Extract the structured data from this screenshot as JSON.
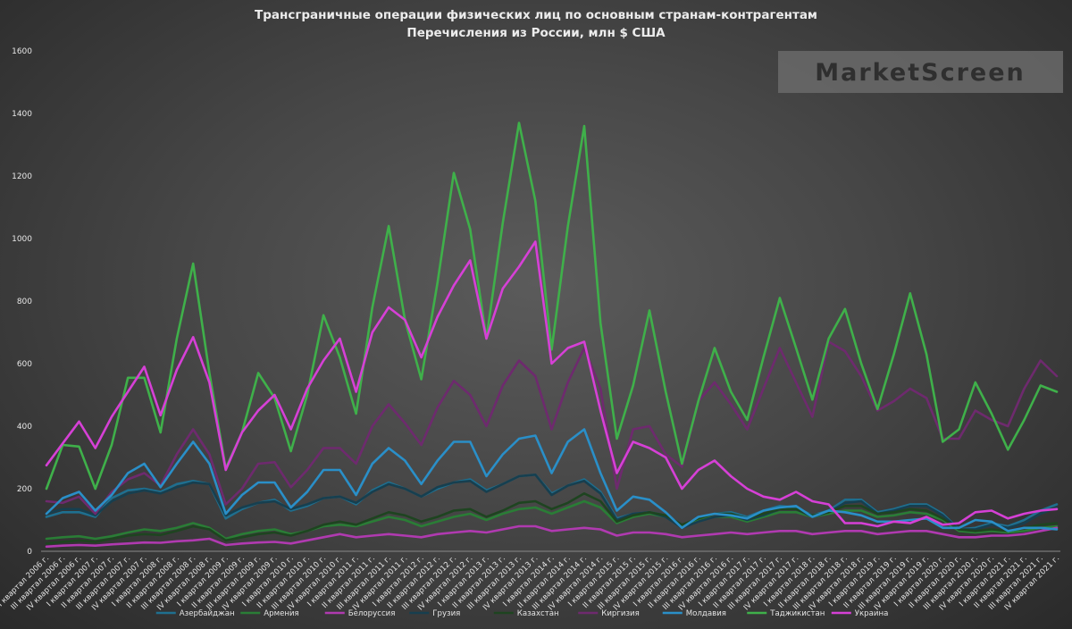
{
  "chart_data": {
    "type": "line",
    "title": "Трансграничные операции физических лиц по основным странам-контрагентам",
    "subtitle": "Перечисления из России, млн $ США",
    "ylim": [
      0,
      1600
    ],
    "yticks": [
      0,
      200,
      400,
      600,
      800,
      1000,
      1200,
      1400,
      1600
    ],
    "grid": false,
    "legend_position": "bottom",
    "watermark": "MarketScreen",
    "categories": [
      "II квартал 2006 г.",
      "III квартал 2006 г.",
      "IV квартал 2006 г.",
      "I квартал 2007 г.",
      "II квартал 2007 г.",
      "III квартал 2007 г.",
      "IV квартал 2007 г.",
      "I квартал 2008 г.",
      "II квартал 2008 г.",
      "III квартал 2008 г.",
      "IV квартал 2008 г.",
      "I квартал 2009 г.",
      "II квартал 2009 г.",
      "III квартал 2009 г.",
      "IV квартал 2009 г.",
      "I квартал 2010 г.",
      "II квартал 2010 г.",
      "III квартал 2010 г.",
      "IV квартал 2010 г.",
      "I квартал 2011 г.",
      "II квартал 2011 г.",
      "III квартал 2011 г.",
      "IV квартал 2011 г.",
      "I квартал 2012 г.",
      "II квартал 2012 г.",
      "III квартал 2012 г.",
      "IV квартал 2012 г.",
      "I квартал 2013 г.",
      "II квартал 2013 г.",
      "III квартал 2013 г.",
      "IV квартал 2013 г.",
      "I квартал 2014 г.",
      "II квартал 2014 г.",
      "III квартал 2014 г.",
      "IV квартал 2014 г.",
      "I квартал 2015 г.",
      "II квартал 2015 г.",
      "III квартал 2015 г.",
      "IV квартал 2015 г.",
      "I квартал 2016 г.",
      "II квартал 2016 г.",
      "III квартал 2016 г.",
      "IV квартал 2016 г.",
      "I квартал 2017 г.",
      "II квартал 2017 г.",
      "III квартал 2017 г.",
      "IV квартал 2017 г.",
      "I квартал 2018 г.",
      "II квартал 2018 г.",
      "III квартал 2018 г.",
      "IV квартал 2018 г.",
      "I квартал 2019 г.",
      "II квартал 2019 г.",
      "III квартал 2019 г.",
      "IV квартал 2019 г.",
      "I квартал 2020 г.",
      "II квартал 2020 г.",
      "III квартал 2020 г.",
      "IV квартал 2020 г.",
      "I квартал 2021 г.",
      "II квартал 2021 г.",
      "III квартал 2021 г.",
      "IV квартал 2021 г."
    ],
    "series": [
      {
        "name": "Азербайджан",
        "color": "#1f6f8f",
        "values": [
          110,
          125,
          125,
          110,
          170,
          195,
          200,
          190,
          215,
          225,
          215,
          105,
          135,
          155,
          165,
          130,
          145,
          170,
          175,
          150,
          195,
          220,
          200,
          175,
          200,
          220,
          230,
          195,
          215,
          240,
          245,
          185,
          210,
          230,
          190,
          105,
          120,
          125,
          115,
          80,
          105,
          120,
          125,
          110,
          130,
          145,
          140,
          115,
          130,
          165,
          165,
          125,
          135,
          150,
          150,
          120,
          70,
          75,
          90,
          80,
          100,
          130,
          150
        ]
      },
      {
        "name": "Армения",
        "color": "#2a7d36",
        "values": [
          40,
          45,
          48,
          40,
          48,
          60,
          70,
          65,
          75,
          90,
          75,
          40,
          55,
          65,
          70,
          55,
          65,
          80,
          85,
          80,
          95,
          110,
          100,
          80,
          95,
          110,
          120,
          100,
          120,
          135,
          140,
          120,
          140,
          160,
          140,
          90,
          110,
          120,
          110,
          80,
          100,
          110,
          110,
          95,
          110,
          125,
          125,
          110,
          120,
          130,
          130,
          110,
          115,
          125,
          120,
          100,
          65,
          60,
          65,
          60,
          65,
          75,
          80
        ]
      },
      {
        "name": "Белоруссия",
        "color": "#b03ab0",
        "values": [
          15,
          18,
          20,
          18,
          22,
          25,
          28,
          27,
          32,
          35,
          40,
          20,
          25,
          28,
          30,
          25,
          35,
          45,
          55,
          45,
          50,
          55,
          50,
          45,
          55,
          60,
          65,
          60,
          70,
          80,
          80,
          65,
          70,
          75,
          70,
          50,
          60,
          60,
          55,
          45,
          50,
          55,
          60,
          55,
          60,
          65,
          65,
          55,
          60,
          65,
          65,
          55,
          60,
          65,
          65,
          55,
          45,
          45,
          50,
          50,
          55,
          65,
          75
        ]
      },
      {
        "name": "Грузия",
        "color": "#173f4f",
        "values": [
          120,
          135,
          135,
          115,
          160,
          185,
          195,
          185,
          205,
          220,
          215,
          115,
          140,
          155,
          160,
          135,
          150,
          170,
          175,
          155,
          190,
          215,
          200,
          175,
          205,
          220,
          225,
          190,
          215,
          240,
          245,
          180,
          210,
          225,
          185,
          100,
          120,
          125,
          110,
          75,
          95,
          110,
          115,
          100,
          115,
          135,
          135,
          110,
          125,
          155,
          160,
          120,
          130,
          145,
          145,
          115,
          70,
          70,
          85,
          75,
          90,
          120,
          140
        ]
      },
      {
        "name": "Казахстан",
        "color": "#1e4420",
        "values": [
          25,
          30,
          35,
          30,
          40,
          50,
          55,
          52,
          65,
          80,
          70,
          35,
          45,
          55,
          60,
          50,
          65,
          85,
          95,
          85,
          105,
          125,
          115,
          95,
          110,
          130,
          135,
          110,
          130,
          155,
          160,
          135,
          155,
          185,
          160,
          95,
          115,
          125,
          115,
          85,
          105,
          120,
          120,
          105,
          120,
          135,
          135,
          115,
          125,
          145,
          145,
          120,
          125,
          135,
          130,
          105,
          70,
          65,
          70,
          65,
          75,
          85,
          90
        ]
      },
      {
        "name": "Киргизия",
        "color": "#6e2a6e",
        "values": [
          160,
          155,
          175,
          120,
          190,
          230,
          250,
          210,
          310,
          390,
          310,
          150,
          200,
          280,
          285,
          205,
          260,
          330,
          330,
          280,
          400,
          470,
          410,
          340,
          460,
          545,
          500,
          400,
          530,
          610,
          560,
          390,
          540,
          650,
          520,
          200,
          390,
          400,
          310,
          270,
          480,
          540,
          470,
          390,
          520,
          650,
          540,
          430,
          670,
          640,
          560,
          450,
          480,
          520,
          490,
          360,
          360,
          450,
          420,
          400,
          520,
          610,
          560
        ]
      },
      {
        "name": "Молдавия",
        "color": "#2a8fc8",
        "values": [
          120,
          170,
          190,
          130,
          180,
          250,
          280,
          205,
          280,
          350,
          280,
          120,
          180,
          220,
          220,
          140,
          190,
          260,
          260,
          180,
          280,
          330,
          290,
          215,
          290,
          350,
          350,
          240,
          310,
          360,
          370,
          250,
          350,
          390,
          250,
          130,
          175,
          165,
          125,
          75,
          110,
          120,
          115,
          105,
          130,
          140,
          145,
          110,
          130,
          125,
          115,
          95,
          95,
          100,
          105,
          75,
          75,
          100,
          95,
          65,
          75,
          75,
          70
        ]
      },
      {
        "name": "Таджикистан",
        "color": "#3fb04a",
        "values": [
          200,
          340,
          335,
          200,
          340,
          555,
          555,
          380,
          680,
          920,
          570,
          265,
          380,
          570,
          490,
          320,
          500,
          755,
          620,
          440,
          780,
          1040,
          740,
          550,
          860,
          1210,
          1030,
          680,
          1050,
          1370,
          1120,
          645,
          1040,
          1360,
          730,
          360,
          530,
          770,
          510,
          280,
          480,
          650,
          510,
          420,
          620,
          810,
          650,
          485,
          680,
          775,
          600,
          455,
          630,
          825,
          630,
          350,
          390,
          540,
          440,
          325,
          420,
          530,
          510
        ]
      },
      {
        "name": "Украина",
        "color": "#d640d6",
        "values": [
          275,
          345,
          415,
          330,
          430,
          510,
          590,
          435,
          580,
          685,
          540,
          260,
          380,
          450,
          500,
          390,
          520,
          610,
          680,
          510,
          700,
          780,
          740,
          620,
          750,
          850,
          930,
          680,
          840,
          910,
          990,
          600,
          650,
          670,
          450,
          250,
          350,
          330,
          300,
          200,
          260,
          290,
          240,
          200,
          175,
          165,
          190,
          160,
          150,
          90,
          90,
          80,
          95,
          90,
          110,
          85,
          90,
          125,
          130,
          105,
          120,
          130,
          135
        ]
      }
    ]
  }
}
